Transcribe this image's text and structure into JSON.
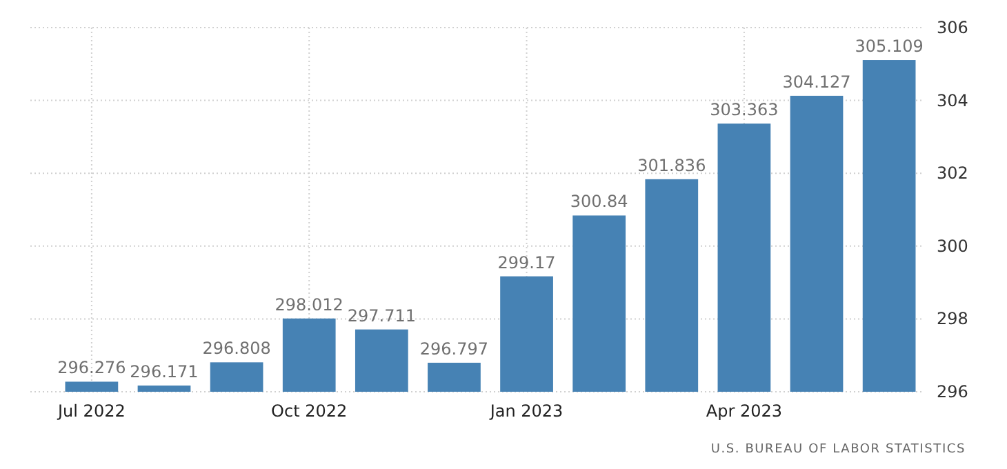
{
  "chart_data": {
    "type": "bar",
    "categories": [
      "Jul 2022",
      null,
      null,
      "Oct 2022",
      null,
      null,
      "Jan 2023",
      null,
      null,
      "Apr 2023",
      null,
      null
    ],
    "values": [
      296.276,
      296.171,
      296.808,
      298.012,
      297.711,
      296.797,
      299.17,
      300.84,
      301.836,
      303.363,
      304.127,
      305.109
    ],
    "value_labels": [
      "296.276",
      "296.171",
      "296.808",
      "298.012",
      "297.711",
      "296.797",
      "299.17",
      "300.84",
      "301.836",
      "303.363",
      "304.127",
      "305.109"
    ],
    "color": "#4682b4",
    "ylim": [
      296,
      306
    ],
    "yticks": [
      296,
      298,
      300,
      302,
      304,
      306
    ],
    "grid": true,
    "annotations": [
      "U.S. BUREAU OF LABOR STATISTICS"
    ]
  }
}
